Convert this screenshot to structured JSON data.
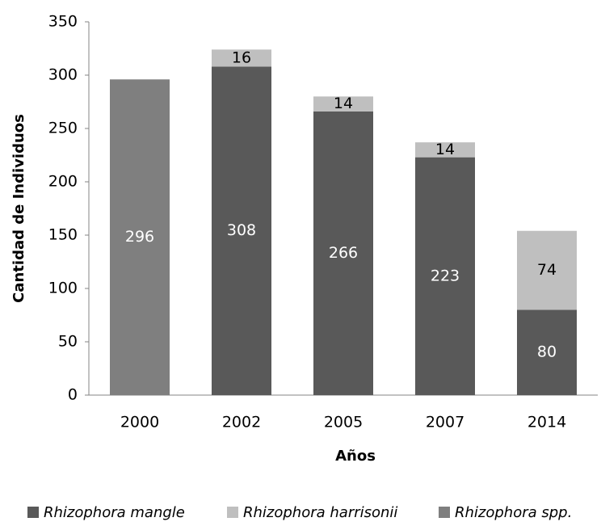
{
  "chart_data": {
    "type": "stacked_bar",
    "categories": [
      "2000",
      "2002",
      "2005",
      "2007",
      "2014"
    ],
    "series": [
      {
        "name": "Rhizophora mangle",
        "color": "#595959",
        "label_color": "#ffffff",
        "values": [
          null,
          308,
          266,
          223,
          80
        ]
      },
      {
        "name": "Rhizophora harrisonii",
        "color": "#bfbfbf",
        "label_color": "#000000",
        "values": [
          null,
          16,
          14,
          14,
          74
        ]
      },
      {
        "name": "Rhizophora spp.",
        "color": "#7f7f7f",
        "label_color": "#ffffff",
        "values": [
          296,
          null,
          null,
          null,
          null
        ]
      }
    ],
    "xlabel": "Años",
    "ylabel": "Cantidad de Individuos",
    "ylim": [
      0,
      350
    ],
    "yticks": [
      0,
      50,
      100,
      150,
      200,
      250,
      300,
      350
    ],
    "grid": false,
    "legend": "bottom"
  }
}
